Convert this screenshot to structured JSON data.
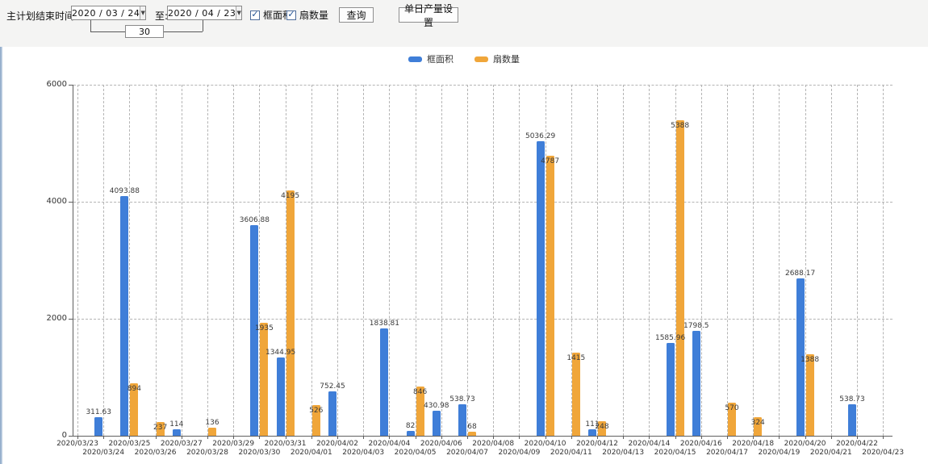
{
  "toolbar": {
    "title_label": "主计划结束时间:",
    "date_from": "2020 / 03 / 24",
    "to_label": "至:",
    "date_to": "2020 / 04 / 23",
    "days_between": "30",
    "checkbox_frame_area": "框面积",
    "checkbox_fan_count": "扇数量",
    "query_button": "查询",
    "daily_output_button": "单日产量设置",
    "dropdown_arrow": "▼"
  },
  "legend": {
    "items": [
      {
        "label": "框面积",
        "color": "#3f7ed8"
      },
      {
        "label": "扇数量",
        "color": "#f0a63a"
      }
    ]
  },
  "chart_data": {
    "type": "bar",
    "title": "",
    "xlabel": "",
    "ylabel": "",
    "ylim": [
      0,
      6000
    ],
    "yticks": [
      0,
      2000,
      4000,
      6000
    ],
    "grid": true,
    "legend_position": "top",
    "categories": [
      "2020/03/23",
      "2020/03/24",
      "2020/03/25",
      "2020/03/26",
      "2020/03/27",
      "2020/03/28",
      "2020/03/29",
      "2020/03/30",
      "2020/03/31",
      "2020/04/01",
      "2020/04/02",
      "2020/04/03",
      "2020/04/04",
      "2020/04/05",
      "2020/04/06",
      "2020/04/07",
      "2020/04/08",
      "2020/04/09",
      "2020/04/10",
      "2020/04/11",
      "2020/04/12",
      "2020/04/13",
      "2020/04/14",
      "2020/04/15",
      "2020/04/16",
      "2020/04/17",
      "2020/04/18",
      "2020/04/19",
      "2020/04/20",
      "2020/04/21",
      "2020/04/22",
      "2020/04/23"
    ],
    "series": [
      {
        "name": "框面积",
        "color": "#3f7ed8",
        "values": [
          null,
          311.63,
          4093.88,
          null,
          114,
          null,
          null,
          3606.88,
          1344.95,
          null,
          752.45,
          null,
          1838.81,
          82,
          430.98,
          538.73,
          null,
          null,
          5036.29,
          null,
          111,
          null,
          null,
          1585.96,
          1798.5,
          null,
          null,
          null,
          2688.17,
          null,
          538.73,
          null
        ]
      },
      {
        "name": "扇数量",
        "color": "#f0a63a",
        "values": [
          null,
          null,
          894,
          237,
          null,
          136,
          null,
          1935,
          4195,
          526,
          null,
          null,
          null,
          846,
          null,
          68,
          null,
          null,
          4787,
          1415,
          248,
          null,
          null,
          5388,
          null,
          570,
          324,
          null,
          1388,
          null,
          null,
          null
        ]
      }
    ]
  }
}
